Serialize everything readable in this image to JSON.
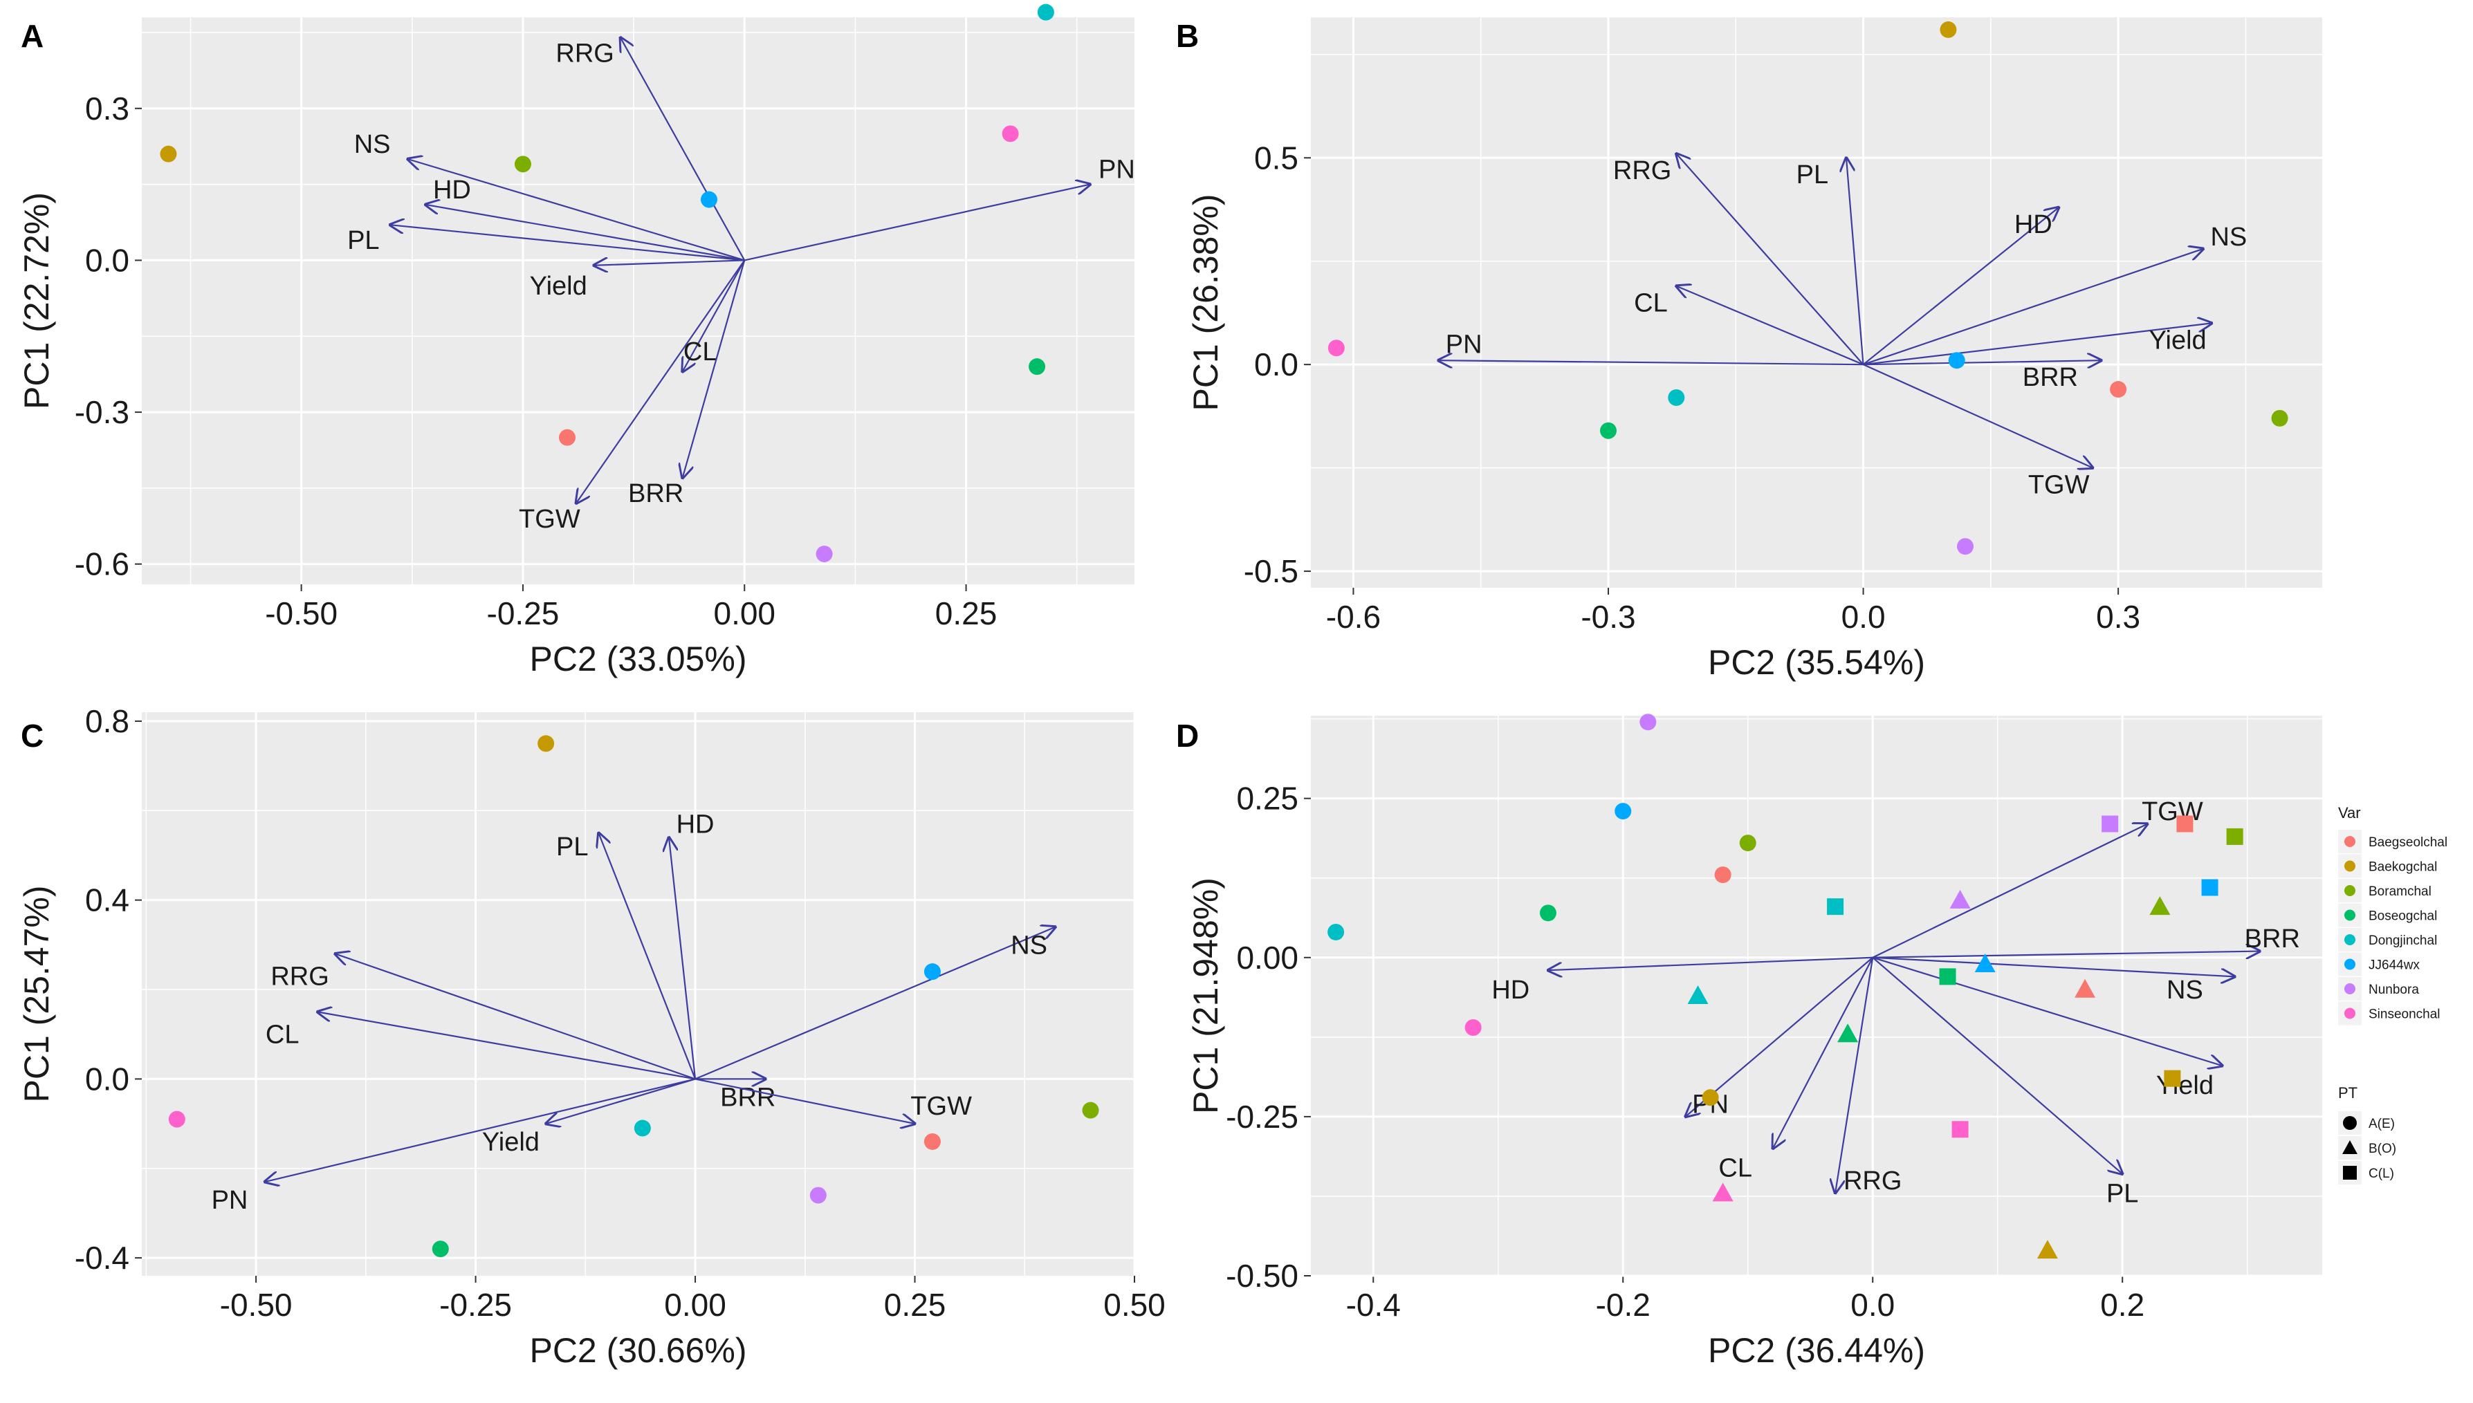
{
  "figure": {
    "background": "#ffffff",
    "panel_bg": "#ebebeb",
    "grid_color": "#ffffff",
    "arrow_color": "#3d3da0"
  },
  "varieties": [
    {
      "name": "Baegseolchal",
      "color": "#f8766d"
    },
    {
      "name": "Baekogchal",
      "color": "#c49a00"
    },
    {
      "name": "Boramchal",
      "color": "#7cae00"
    },
    {
      "name": "Boseogchal",
      "color": "#00be67"
    },
    {
      "name": "Dongjinchal",
      "color": "#00bfc4"
    },
    {
      "name": "JJ644wx",
      "color": "#00a9ff"
    },
    {
      "name": "Nunbora",
      "color": "#c77cff"
    },
    {
      "name": "Sinseonchal",
      "color": "#ff61cc"
    }
  ],
  "legend": {
    "var_title": "Var",
    "pt_title": "PT",
    "pt_items": [
      {
        "label": "A(E)",
        "shape": "circle"
      },
      {
        "label": "B(O)",
        "shape": "triangle"
      },
      {
        "label": "C(L)",
        "shape": "square"
      }
    ],
    "placement": "right of panel D"
  },
  "chart_data": [
    {
      "type": "scatter",
      "panel": "A",
      "xlabel": "PC2 (33.05%)",
      "ylabel": "PC1 (22.72%)",
      "xlim": [
        -0.68,
        0.44
      ],
      "ylim": [
        -0.64,
        0.48
      ],
      "xticks": [
        -0.5,
        -0.25,
        0,
        0.25
      ],
      "xtick_labels": [
        "-0.50",
        "-0.25",
        "0.00",
        "0.25"
      ],
      "yticks": [
        -0.6,
        -0.3,
        0,
        0.3
      ],
      "ytick_labels": [
        "-0.6",
        "-0.3",
        "0.0",
        "0.3"
      ],
      "points": [
        {
          "var": "Baegseolchal",
          "shape": "circle",
          "x": -0.2,
          "y": -0.35
        },
        {
          "var": "Baekogchal",
          "shape": "circle",
          "x": -0.65,
          "y": 0.21
        },
        {
          "var": "Boramchal",
          "shape": "circle",
          "x": -0.25,
          "y": 0.19
        },
        {
          "var": "Boseogchal",
          "shape": "circle",
          "x": 0.33,
          "y": -0.21
        },
        {
          "var": "Dongjinchal",
          "shape": "circle",
          "x": 0.34,
          "y": 0.49
        },
        {
          "var": "JJ644wx",
          "shape": "circle",
          "x": -0.04,
          "y": 0.12
        },
        {
          "var": "Nunbora",
          "shape": "circle",
          "x": 0.09,
          "y": -0.58
        },
        {
          "var": "Sinseonchal",
          "shape": "circle",
          "x": 0.3,
          "y": 0.25
        }
      ],
      "vectors": [
        {
          "label": "RRG",
          "x": -0.14,
          "y": 0.44,
          "lx": -0.18,
          "ly": 0.41
        },
        {
          "label": "NS",
          "x": -0.38,
          "y": 0.2,
          "lx": -0.42,
          "ly": 0.23
        },
        {
          "label": "HD",
          "x": -0.36,
          "y": 0.11,
          "lx": -0.33,
          "ly": 0.14
        },
        {
          "label": "PL",
          "x": -0.4,
          "y": 0.07,
          "lx": -0.43,
          "ly": 0.04
        },
        {
          "label": "Yield",
          "x": -0.17,
          "y": -0.01,
          "lx": -0.21,
          "ly": -0.05
        },
        {
          "label": "CL",
          "x": -0.07,
          "y": -0.22,
          "lx": -0.05,
          "ly": -0.18
        },
        {
          "label": "BRR",
          "x": -0.07,
          "y": -0.43,
          "lx": -0.1,
          "ly": -0.46
        },
        {
          "label": "TGW",
          "x": -0.19,
          "y": -0.48,
          "lx": -0.22,
          "ly": -0.51
        },
        {
          "label": "PN",
          "x": 0.39,
          "y": 0.15,
          "lx": 0.42,
          "ly": 0.18
        }
      ]
    },
    {
      "type": "scatter",
      "panel": "B",
      "xlabel": "PC2 (35.54%)",
      "ylabel": "PC1 (26.38%)",
      "xlim": [
        -0.65,
        0.54
      ],
      "ylim": [
        -0.54,
        0.84
      ],
      "xticks": [
        -0.6,
        -0.3,
        0,
        0.3
      ],
      "xtick_labels": [
        "-0.6",
        "-0.3",
        "0.0",
        "0.3"
      ],
      "yticks": [
        -0.5,
        0,
        0.5
      ],
      "ytick_labels": [
        "-0.5",
        "0.0",
        "0.5"
      ],
      "points": [
        {
          "var": "Baegseolchal",
          "shape": "circle",
          "x": 0.3,
          "y": -0.06
        },
        {
          "var": "Baekogchal",
          "shape": "circle",
          "x": 0.1,
          "y": 0.81
        },
        {
          "var": "Boramchal",
          "shape": "circle",
          "x": 0.49,
          "y": -0.13
        },
        {
          "var": "Boseogchal",
          "shape": "circle",
          "x": -0.3,
          "y": -0.16
        },
        {
          "var": "Dongjinchal",
          "shape": "circle",
          "x": -0.22,
          "y": -0.08
        },
        {
          "var": "JJ644wx",
          "shape": "circle",
          "x": 0.11,
          "y": 0.01
        },
        {
          "var": "Nunbora",
          "shape": "circle",
          "x": 0.12,
          "y": -0.44
        },
        {
          "var": "Sinseonchal",
          "shape": "circle",
          "x": -0.62,
          "y": 0.04
        }
      ],
      "vectors": [
        {
          "label": "RRG",
          "x": -0.22,
          "y": 0.51,
          "lx": -0.26,
          "ly": 0.47
        },
        {
          "label": "PL",
          "x": -0.02,
          "y": 0.5,
          "lx": -0.06,
          "ly": 0.46
        },
        {
          "label": "HD",
          "x": 0.23,
          "y": 0.38,
          "lx": 0.2,
          "ly": 0.34
        },
        {
          "label": "NS",
          "x": 0.4,
          "y": 0.28,
          "lx": 0.43,
          "ly": 0.31
        },
        {
          "label": "CL",
          "x": -0.22,
          "y": 0.19,
          "lx": -0.25,
          "ly": 0.15
        },
        {
          "label": "PN",
          "x": -0.5,
          "y": 0.01,
          "lx": -0.47,
          "ly": 0.05
        },
        {
          "label": "Yield",
          "x": 0.41,
          "y": 0.1,
          "lx": 0.37,
          "ly": 0.06
        },
        {
          "label": "BRR",
          "x": 0.28,
          "y": 0.01,
          "lx": 0.22,
          "ly": -0.03
        },
        {
          "label": "TGW",
          "x": 0.27,
          "y": -0.25,
          "lx": 0.23,
          "ly": -0.29
        }
      ]
    },
    {
      "type": "scatter",
      "panel": "C",
      "xlabel": "PC2 (30.66%)",
      "ylabel": "PC1 (25.47%)",
      "xlim": [
        -0.63,
        0.5
      ],
      "ylim": [
        -0.44,
        0.82
      ],
      "xticks": [
        -0.5,
        -0.25,
        0,
        0.25,
        0.5
      ],
      "xtick_labels": [
        "-0.50",
        "-0.25",
        "0.00",
        "0.25",
        "0.50"
      ],
      "yticks": [
        -0.4,
        0,
        0.4,
        0.8
      ],
      "ytick_labels": [
        "-0.4",
        "0.0",
        "0.4",
        "0.8"
      ],
      "points": [
        {
          "var": "Baegseolchal",
          "shape": "circle",
          "x": 0.27,
          "y": -0.14
        },
        {
          "var": "Baekogchal",
          "shape": "circle",
          "x": -0.17,
          "y": 0.75
        },
        {
          "var": "Boramchal",
          "shape": "circle",
          "x": 0.45,
          "y": -0.07
        },
        {
          "var": "Boseogchal",
          "shape": "circle",
          "x": -0.29,
          "y": -0.38
        },
        {
          "var": "Dongjinchal",
          "shape": "circle",
          "x": -0.06,
          "y": -0.11
        },
        {
          "var": "JJ644wx",
          "shape": "circle",
          "x": 0.27,
          "y": 0.24
        },
        {
          "var": "Nunbora",
          "shape": "circle",
          "x": 0.14,
          "y": -0.26
        },
        {
          "var": "Sinseonchal",
          "shape": "circle",
          "x": -0.59,
          "y": -0.09
        }
      ],
      "vectors": [
        {
          "label": "PL",
          "x": -0.11,
          "y": 0.55,
          "lx": -0.14,
          "ly": 0.52
        },
        {
          "label": "HD",
          "x": -0.03,
          "y": 0.54,
          "lx": 0.0,
          "ly": 0.57
        },
        {
          "label": "NS",
          "x": 0.41,
          "y": 0.34,
          "lx": 0.38,
          "ly": 0.3
        },
        {
          "label": "RRG",
          "x": -0.41,
          "y": 0.28,
          "lx": -0.45,
          "ly": 0.23
        },
        {
          "label": "CL",
          "x": -0.43,
          "y": 0.15,
          "lx": -0.47,
          "ly": 0.1
        },
        {
          "label": "BRR",
          "x": 0.08,
          "y": 0.0,
          "lx": 0.06,
          "ly": -0.04
        },
        {
          "label": "TGW",
          "x": 0.25,
          "y": -0.1,
          "lx": 0.28,
          "ly": -0.06
        },
        {
          "label": "Yield",
          "x": -0.17,
          "y": -0.1,
          "lx": -0.21,
          "ly": -0.14
        },
        {
          "label": "PN",
          "x": -0.49,
          "y": -0.23,
          "lx": -0.53,
          "ly": -0.27
        }
      ]
    },
    {
      "type": "scatter",
      "panel": "D",
      "xlabel": "PC2 (36.44%)",
      "ylabel": "PC1 (21.948%)",
      "xlim": [
        -0.45,
        0.36
      ],
      "ylim": [
        -0.5,
        0.38
      ],
      "xticks": [
        -0.4,
        -0.2,
        0,
        0.2
      ],
      "xtick_labels": [
        "-0.4",
        "-0.2",
        "0.0",
        "0.2"
      ],
      "yticks": [
        -0.5,
        -0.25,
        0,
        0.25
      ],
      "ytick_labels": [
        "-0.50",
        "-0.25",
        "0.00",
        "0.25"
      ],
      "points": [
        {
          "var": "Baegseolchal",
          "shape": "circle",
          "x": -0.12,
          "y": 0.13
        },
        {
          "var": "Baekogchal",
          "shape": "circle",
          "x": -0.13,
          "y": -0.22
        },
        {
          "var": "Boramchal",
          "shape": "circle",
          "x": -0.1,
          "y": 0.18
        },
        {
          "var": "Boseogchal",
          "shape": "circle",
          "x": -0.26,
          "y": 0.07
        },
        {
          "var": "Dongjinchal",
          "shape": "circle",
          "x": -0.43,
          "y": 0.04
        },
        {
          "var": "JJ644wx",
          "shape": "circle",
          "x": -0.2,
          "y": 0.23
        },
        {
          "var": "Nunbora",
          "shape": "circle",
          "x": -0.18,
          "y": 0.37
        },
        {
          "var": "Sinseonchal",
          "shape": "circle",
          "x": -0.32,
          "y": -0.11
        },
        {
          "var": "Baegseolchal",
          "shape": "triangle",
          "x": 0.17,
          "y": -0.05
        },
        {
          "var": "Baekogchal",
          "shape": "triangle",
          "x": 0.14,
          "y": -0.46
        },
        {
          "var": "Boramchal",
          "shape": "triangle",
          "x": 0.23,
          "y": 0.08
        },
        {
          "var": "Boseogchal",
          "shape": "triangle",
          "x": -0.02,
          "y": -0.12
        },
        {
          "var": "Dongjinchal",
          "shape": "triangle",
          "x": -0.14,
          "y": -0.06
        },
        {
          "var": "JJ644wx",
          "shape": "triangle",
          "x": 0.09,
          "y": -0.01
        },
        {
          "var": "Nunbora",
          "shape": "triangle",
          "x": 0.07,
          "y": 0.09
        },
        {
          "var": "Sinseonchal",
          "shape": "triangle",
          "x": -0.12,
          "y": -0.37
        },
        {
          "var": "Baegseolchal",
          "shape": "square",
          "x": 0.25,
          "y": 0.21
        },
        {
          "var": "Baekogchal",
          "shape": "square",
          "x": 0.24,
          "y": -0.19
        },
        {
          "var": "Boramchal",
          "shape": "square",
          "x": 0.29,
          "y": 0.19
        },
        {
          "var": "Boseogchal",
          "shape": "square",
          "x": 0.06,
          "y": -0.03
        },
        {
          "var": "Dongjinchal",
          "shape": "square",
          "x": -0.03,
          "y": 0.08
        },
        {
          "var": "JJ644wx",
          "shape": "square",
          "x": 0.27,
          "y": 0.11
        },
        {
          "var": "Nunbora",
          "shape": "square",
          "x": 0.19,
          "y": 0.21
        },
        {
          "var": "Sinseonchal",
          "shape": "square",
          "x": 0.07,
          "y": -0.27
        }
      ],
      "vectors": [
        {
          "label": "TGW",
          "x": 0.22,
          "y": 0.21,
          "lx": 0.24,
          "ly": 0.23
        },
        {
          "label": "BRR",
          "x": 0.31,
          "y": 0.01,
          "lx": 0.32,
          "ly": 0.03
        },
        {
          "label": "NS",
          "x": 0.29,
          "y": -0.03,
          "lx": 0.25,
          "ly": -0.05
        },
        {
          "label": "Yield",
          "x": 0.28,
          "y": -0.17,
          "lx": 0.25,
          "ly": -0.2
        },
        {
          "label": "PL",
          "x": 0.2,
          "y": -0.34,
          "lx": 0.2,
          "ly": -0.37
        },
        {
          "label": "HD",
          "x": -0.26,
          "y": -0.02,
          "lx": -0.29,
          "ly": -0.05
        },
        {
          "label": "PN",
          "x": -0.15,
          "y": -0.25,
          "lx": -0.13,
          "ly": -0.23
        },
        {
          "label": "CL",
          "x": -0.08,
          "y": -0.3,
          "lx": -0.11,
          "ly": -0.33
        },
        {
          "label": "RRG",
          "x": -0.03,
          "y": -0.37,
          "lx": 0.0,
          "ly": -0.35
        }
      ]
    }
  ]
}
